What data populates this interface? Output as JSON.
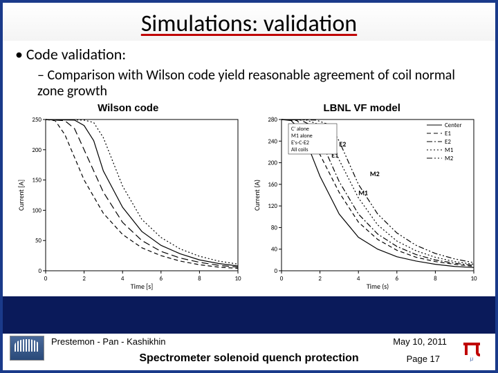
{
  "title": "Simulations: validation",
  "bullet1": "•  Code validation:",
  "bullet2": "–  Comparison with Wilson code yield reasonable agreement of coil normal zone growth",
  "chart_left_label": "Wilson code",
  "chart_right_label": "LBNL VF model",
  "footer_authors": "Prestemon - Pan - Kashikhin",
  "footer_date": "May 10, 2011",
  "footer_title": "Spectrometer solenoid quench protection",
  "page": "Page 17",
  "chart_left": {
    "type": "line",
    "xlabel": "Time [s]",
    "ylabel": "Current [A]",
    "xlim": [
      0,
      10
    ],
    "ylim": [
      0,
      250
    ],
    "xticks": [
      0,
      2,
      4,
      6,
      8,
      10
    ],
    "yticks": [
      0,
      50,
      100,
      150,
      200,
      250
    ],
    "label_fontsize": 9,
    "grid_color": "#e8e8e8",
    "line_color": "#000000",
    "background_color": "#ffffff",
    "series": [
      {
        "name": "curve1",
        "style": "dash",
        "values": [
          [
            0,
            250
          ],
          [
            0.5,
            248
          ],
          [
            1,
            225
          ],
          [
            2,
            150
          ],
          [
            3,
            95
          ],
          [
            4,
            60
          ],
          [
            5,
            38
          ],
          [
            6,
            25
          ],
          [
            7,
            16
          ],
          [
            8,
            10
          ],
          [
            9,
            6
          ],
          [
            10,
            4
          ]
        ]
      },
      {
        "name": "curve2",
        "style": "dash-long",
        "values": [
          [
            0,
            250
          ],
          [
            1,
            248
          ],
          [
            1.5,
            235
          ],
          [
            2,
            200
          ],
          [
            3,
            130
          ],
          [
            4,
            80
          ],
          [
            5,
            50
          ],
          [
            6,
            32
          ],
          [
            7,
            21
          ],
          [
            8,
            14
          ],
          [
            9,
            9
          ],
          [
            10,
            6
          ]
        ]
      },
      {
        "name": "curve3",
        "style": "solid",
        "values": [
          [
            0,
            250
          ],
          [
            1.5,
            249
          ],
          [
            2,
            240
          ],
          [
            2.5,
            215
          ],
          [
            3,
            165
          ],
          [
            4,
            105
          ],
          [
            5,
            65
          ],
          [
            6,
            42
          ],
          [
            7,
            28
          ],
          [
            8,
            18
          ],
          [
            9,
            12
          ],
          [
            10,
            8
          ]
        ]
      },
      {
        "name": "curve4",
        "style": "dot",
        "values": [
          [
            0,
            250
          ],
          [
            2,
            249
          ],
          [
            2.5,
            245
          ],
          [
            3,
            220
          ],
          [
            3.5,
            180
          ],
          [
            4,
            140
          ],
          [
            5,
            85
          ],
          [
            6,
            55
          ],
          [
            7,
            36
          ],
          [
            8,
            24
          ],
          [
            9,
            16
          ],
          [
            10,
            11
          ]
        ]
      }
    ]
  },
  "chart_right": {
    "type": "line",
    "xlabel": "Time (s)",
    "ylabel": "Current (A)",
    "xlim": [
      0,
      10
    ],
    "ylim": [
      0,
      280
    ],
    "xticks": [
      0,
      2,
      4,
      6,
      8,
      10
    ],
    "yticks": [
      0,
      40,
      80,
      120,
      160,
      200,
      240,
      280
    ],
    "label_fontsize": 9,
    "grid_color": "#ffffff",
    "line_color": "#000000",
    "background_color": "#ffffff",
    "annotations": [
      "M1",
      "M2",
      "E1",
      "E2"
    ],
    "legend_items": [
      "Center",
      "E1",
      "E2",
      "M1",
      "M2"
    ],
    "legend_boxes": [
      "C' alone",
      "M1 alone",
      "E's-C-E2",
      "All coils"
    ],
    "series": [
      {
        "name": "Center",
        "style": "solid",
        "values": [
          [
            0,
            280
          ],
          [
            0.5,
            278
          ],
          [
            1,
            260
          ],
          [
            1.5,
            220
          ],
          [
            2,
            175
          ],
          [
            3,
            105
          ],
          [
            4,
            62
          ],
          [
            5,
            40
          ],
          [
            6,
            26
          ],
          [
            7,
            18
          ],
          [
            8,
            12
          ],
          [
            9,
            8
          ],
          [
            10,
            6
          ]
        ]
      },
      {
        "name": "E1",
        "style": "dash",
        "values": [
          [
            0,
            280
          ],
          [
            0.8,
            278
          ],
          [
            1.3,
            262
          ],
          [
            2,
            215
          ],
          [
            3,
            145
          ],
          [
            4,
            90
          ],
          [
            5,
            58
          ],
          [
            6,
            38
          ],
          [
            7,
            25
          ],
          [
            8,
            17
          ],
          [
            9,
            12
          ],
          [
            10,
            8
          ]
        ]
      },
      {
        "name": "E2",
        "style": "dash-dot",
        "values": [
          [
            0,
            280
          ],
          [
            1,
            279
          ],
          [
            1.5,
            270
          ],
          [
            2,
            245
          ],
          [
            2.5,
            205
          ],
          [
            3,
            165
          ],
          [
            4,
            105
          ],
          [
            5,
            68
          ],
          [
            6,
            45
          ],
          [
            7,
            30
          ],
          [
            8,
            20
          ],
          [
            9,
            14
          ],
          [
            10,
            10
          ]
        ]
      },
      {
        "name": "M1",
        "style": "dot",
        "values": [
          [
            0,
            280
          ],
          [
            1.3,
            279
          ],
          [
            2,
            270
          ],
          [
            2.5,
            245
          ],
          [
            3,
            205
          ],
          [
            4,
            135
          ],
          [
            5,
            85
          ],
          [
            6,
            55
          ],
          [
            7,
            37
          ],
          [
            8,
            25
          ],
          [
            9,
            17
          ],
          [
            10,
            12
          ]
        ]
      },
      {
        "name": "M2",
        "style": "dash-dot-dot",
        "values": [
          [
            0,
            280
          ],
          [
            1.8,
            279
          ],
          [
            2.5,
            270
          ],
          [
            3,
            240
          ],
          [
            3.5,
            200
          ],
          [
            4,
            160
          ],
          [
            5,
            105
          ],
          [
            6,
            70
          ],
          [
            7,
            47
          ],
          [
            8,
            32
          ],
          [
            9,
            22
          ],
          [
            10,
            15
          ]
        ]
      }
    ]
  }
}
